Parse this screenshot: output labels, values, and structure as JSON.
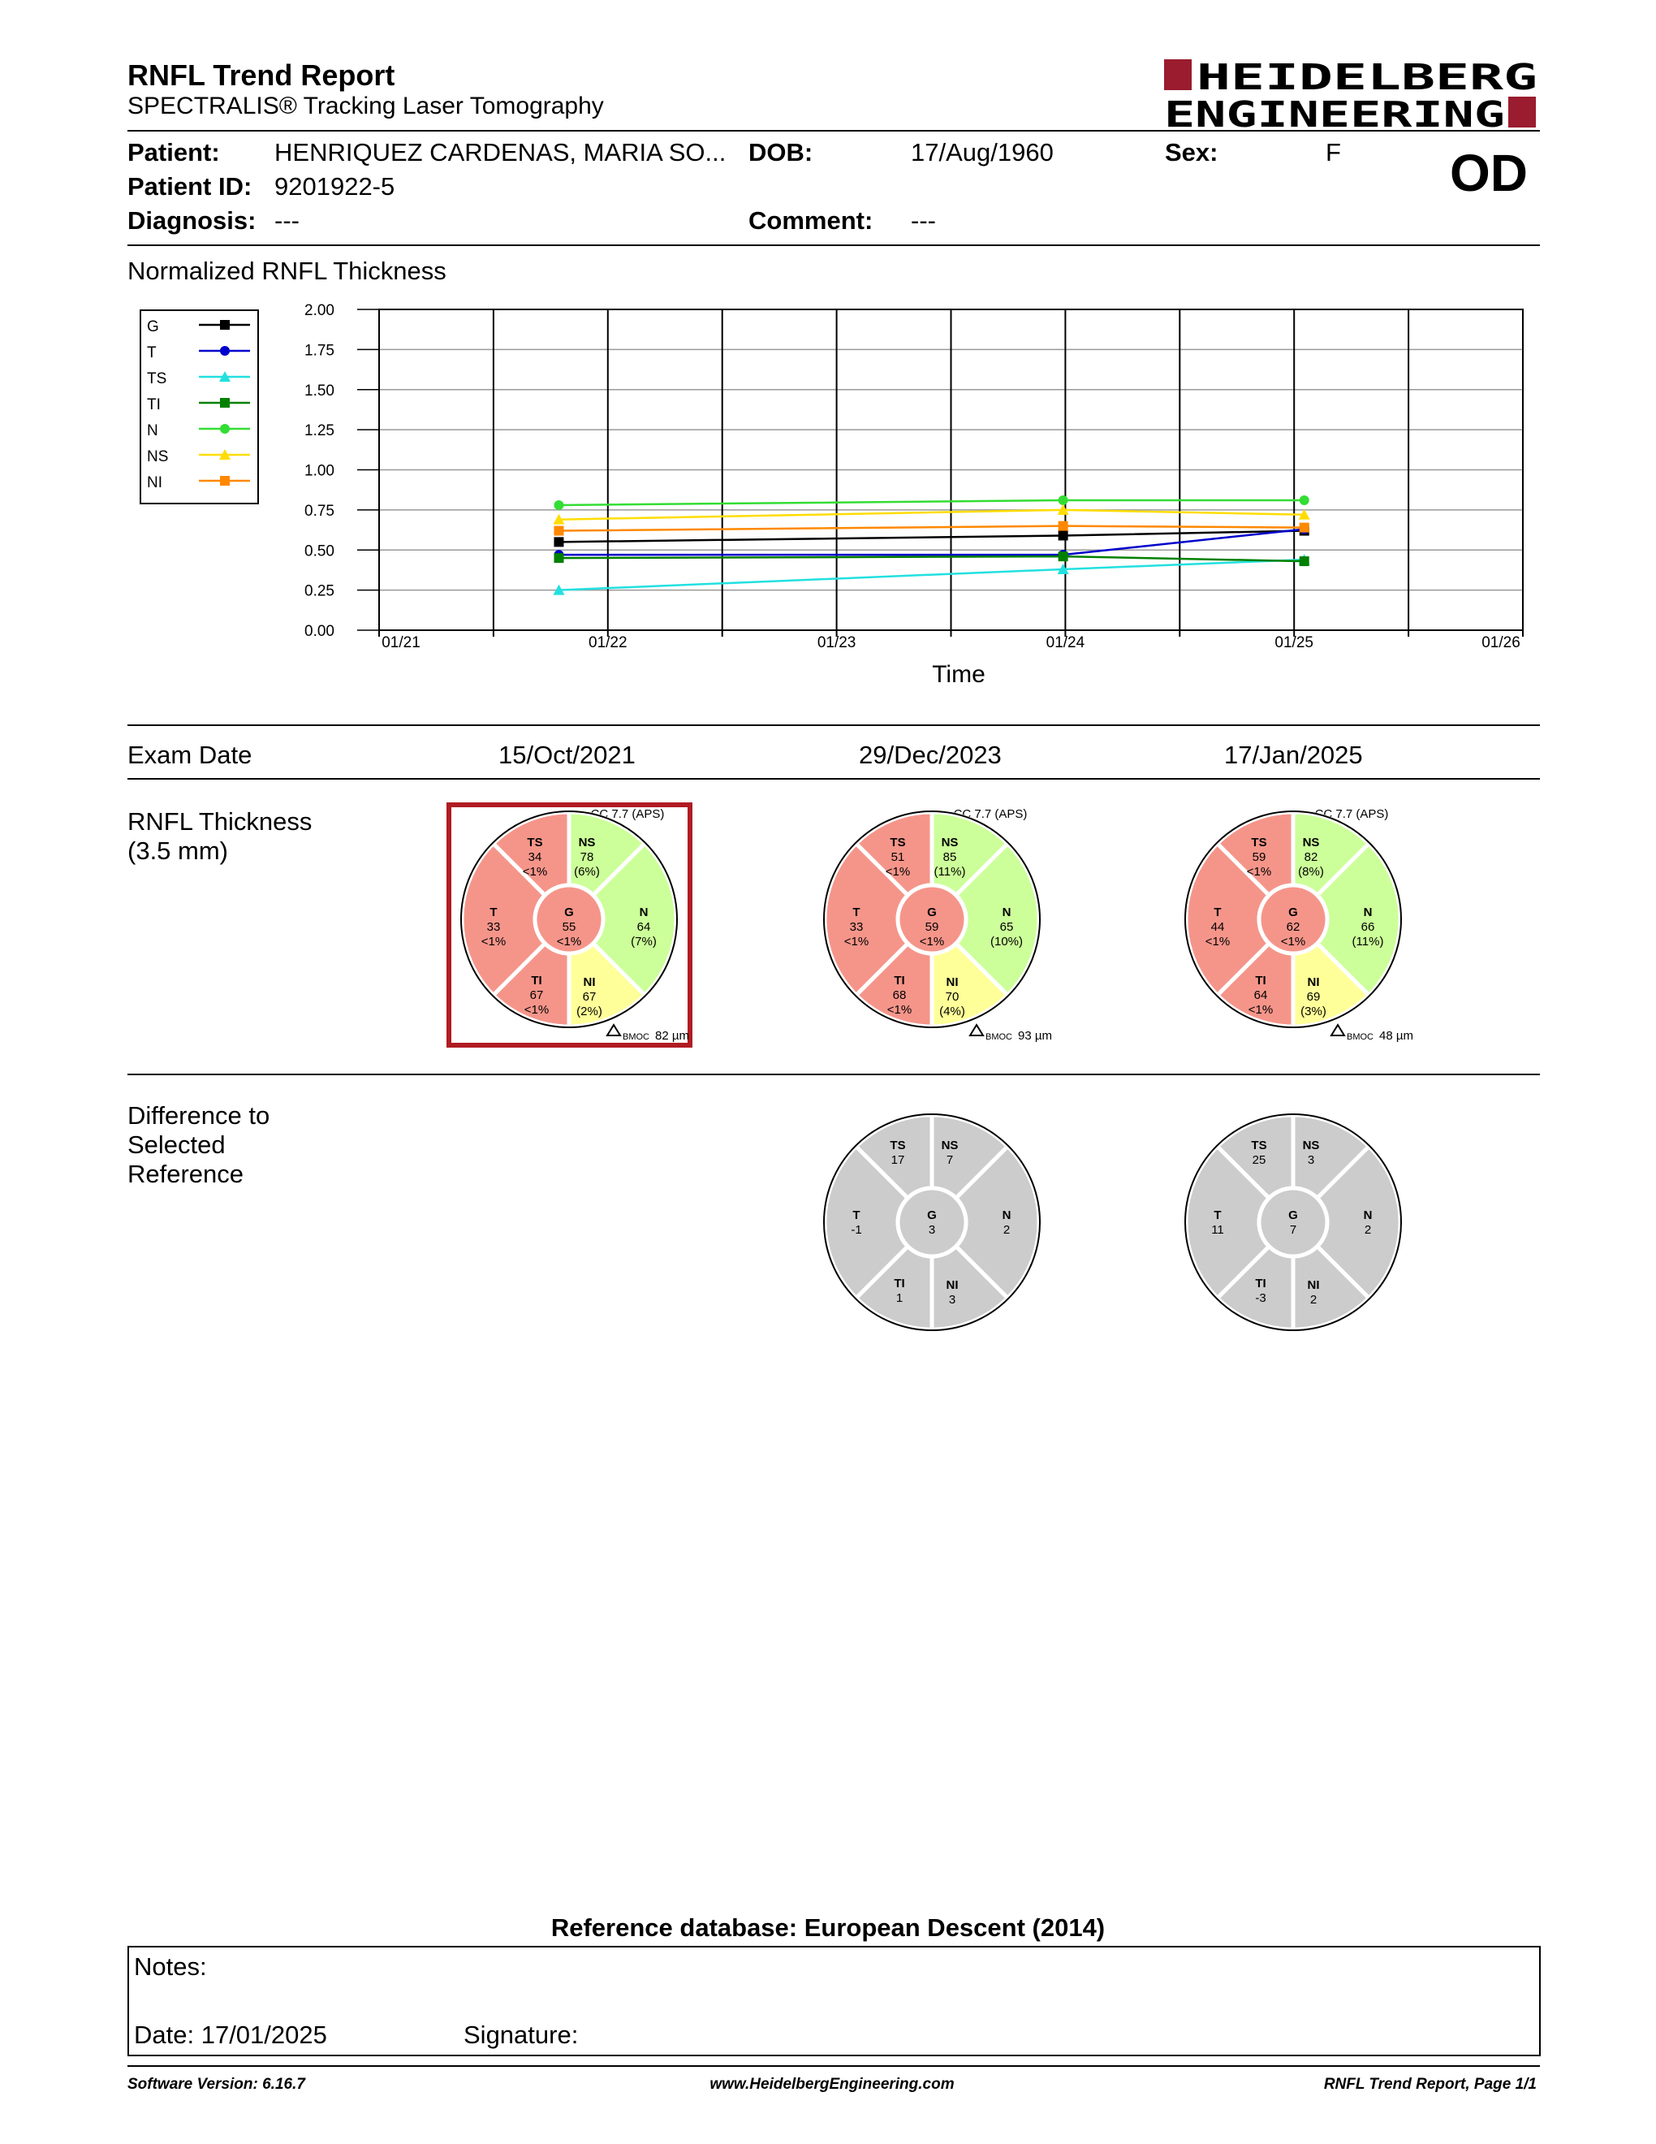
{
  "report": {
    "title": "RNFL Trend Report",
    "subtitle": "SPECTRALIS® Tracking Laser Tomography",
    "logo_line1": "HEIDELBERG",
    "logo_line2": "ENGINEERING",
    "eye": "OD",
    "brand_color": "#9a1c2e"
  },
  "patient": {
    "patient_label": "Patient:",
    "patient_name": "HENRIQUEZ CARDENAS, MARIA SO...",
    "dob_label": "DOB:",
    "dob": "17/Aug/1960",
    "sex_label": "Sex:",
    "sex": "F",
    "id_label": "Patient ID:",
    "id": "9201922-5",
    "diagnosis_label": "Diagnosis:",
    "diagnosis": "---",
    "comment_label": "Comment:",
    "comment": "---"
  },
  "chart_data": {
    "type": "line",
    "title": "Normalized RNFL Thickness",
    "xlabel": "Time",
    "ylabel": "",
    "ylim": [
      0,
      2
    ],
    "yticks": [
      "0.00",
      "0.25",
      "0.50",
      "0.75",
      "1.00",
      "1.25",
      "1.50",
      "1.75",
      "2.00"
    ],
    "xticks": [
      "01/21",
      "01/22",
      "01/23",
      "01/24",
      "01/25",
      "01/26"
    ],
    "x": [
      "2021-10-15",
      "2023-12-29",
      "2025-01-17"
    ],
    "legend_position": "left",
    "grid": true,
    "series": [
      {
        "name": "G",
        "color": "#000000",
        "marker": "square",
        "values": [
          0.55,
          0.59,
          0.62
        ]
      },
      {
        "name": "T",
        "color": "#0000cc",
        "marker": "circle",
        "values": [
          0.47,
          0.47,
          0.63
        ]
      },
      {
        "name": "TS",
        "color": "#22e0e0",
        "marker": "triangle",
        "values": [
          0.25,
          0.38,
          0.44
        ]
      },
      {
        "name": "TI",
        "color": "#008000",
        "marker": "square",
        "values": [
          0.45,
          0.46,
          0.43
        ]
      },
      {
        "name": "N",
        "color": "#33dd33",
        "marker": "circle",
        "values": [
          0.78,
          0.81,
          0.81
        ]
      },
      {
        "name": "NS",
        "color": "#ffdd00",
        "marker": "triangle",
        "values": [
          0.69,
          0.75,
          0.72
        ]
      },
      {
        "name": "NI",
        "color": "#ff8800",
        "marker": "square",
        "values": [
          0.62,
          0.65,
          0.64
        ]
      }
    ]
  },
  "exam": {
    "date_label": "Exam Date",
    "dates": [
      "15/Oct/2021",
      "29/Dec/2023",
      "17/Jan/2025"
    ],
    "thickness_label": "RNFL Thickness\n(3.5 mm)",
    "thickness_label_line1": "RNFL Thickness",
    "thickness_label_line2": "(3.5 mm)",
    "difference_label_line1": "Difference to",
    "difference_label_line2": "Selected",
    "difference_label_line3": "Reference",
    "bmoc_label": "BMOC"
  },
  "thickness_exams": [
    {
      "cc": "CC 7.7 (APS)",
      "bmoc": "82 µm",
      "selected": true,
      "sectors": {
        "TS": {
          "v": "34",
          "p": "<1%",
          "c": "red"
        },
        "NS": {
          "v": "78",
          "p": "(6%)",
          "c": "green"
        },
        "N": {
          "v": "64",
          "p": "(7%)",
          "c": "green"
        },
        "NI": {
          "v": "67",
          "p": "(2%)",
          "c": "yellow"
        },
        "TI": {
          "v": "67",
          "p": "<1%",
          "c": "red"
        },
        "T": {
          "v": "33",
          "p": "<1%",
          "c": "red"
        },
        "G": {
          "v": "55",
          "p": "<1%",
          "c": "red"
        }
      }
    },
    {
      "cc": "CC 7.7 (APS)",
      "bmoc": "93 µm",
      "selected": false,
      "sectors": {
        "TS": {
          "v": "51",
          "p": "<1%",
          "c": "red"
        },
        "NS": {
          "v": "85",
          "p": "(11%)",
          "c": "green"
        },
        "N": {
          "v": "65",
          "p": "(10%)",
          "c": "green"
        },
        "NI": {
          "v": "70",
          "p": "(4%)",
          "c": "yellow"
        },
        "TI": {
          "v": "68",
          "p": "<1%",
          "c": "red"
        },
        "T": {
          "v": "33",
          "p": "<1%",
          "c": "red"
        },
        "G": {
          "v": "59",
          "p": "<1%",
          "c": "red"
        }
      }
    },
    {
      "cc": "CC 7.7 (APS)",
      "bmoc": "48 µm",
      "selected": false,
      "sectors": {
        "TS": {
          "v": "59",
          "p": "<1%",
          "c": "red"
        },
        "NS": {
          "v": "82",
          "p": "(8%)",
          "c": "green"
        },
        "N": {
          "v": "66",
          "p": "(11%)",
          "c": "green"
        },
        "NI": {
          "v": "69",
          "p": "(3%)",
          "c": "yellow"
        },
        "TI": {
          "v": "64",
          "p": "<1%",
          "c": "red"
        },
        "T": {
          "v": "44",
          "p": "<1%",
          "c": "red"
        },
        "G": {
          "v": "62",
          "p": "<1%",
          "c": "red"
        }
      }
    }
  ],
  "difference_exams": [
    {
      "sectors": {
        "TS": "17",
        "NS": "7",
        "N": "2",
        "NI": "3",
        "TI": "1",
        "T": "-1",
        "G": "3"
      }
    },
    {
      "sectors": {
        "TS": "25",
        "NS": "3",
        "N": "2",
        "NI": "2",
        "TI": "-3",
        "T": "11",
        "G": "7"
      }
    }
  ],
  "sector_colors": {
    "red": "#f5958a",
    "green": "#ccff99",
    "yellow": "#ffff99",
    "gray": "#cccccc"
  },
  "footer": {
    "reference_db": "Reference database: European Descent (2014)",
    "notes_label": "Notes:",
    "date_label": "Date: 17/01/2025",
    "signature_label": "Signature:",
    "software_version": "Software Version: 6.16.7",
    "website": "www.HeidelbergEngineering.com",
    "page": "RNFL Trend Report, Page 1/1"
  }
}
